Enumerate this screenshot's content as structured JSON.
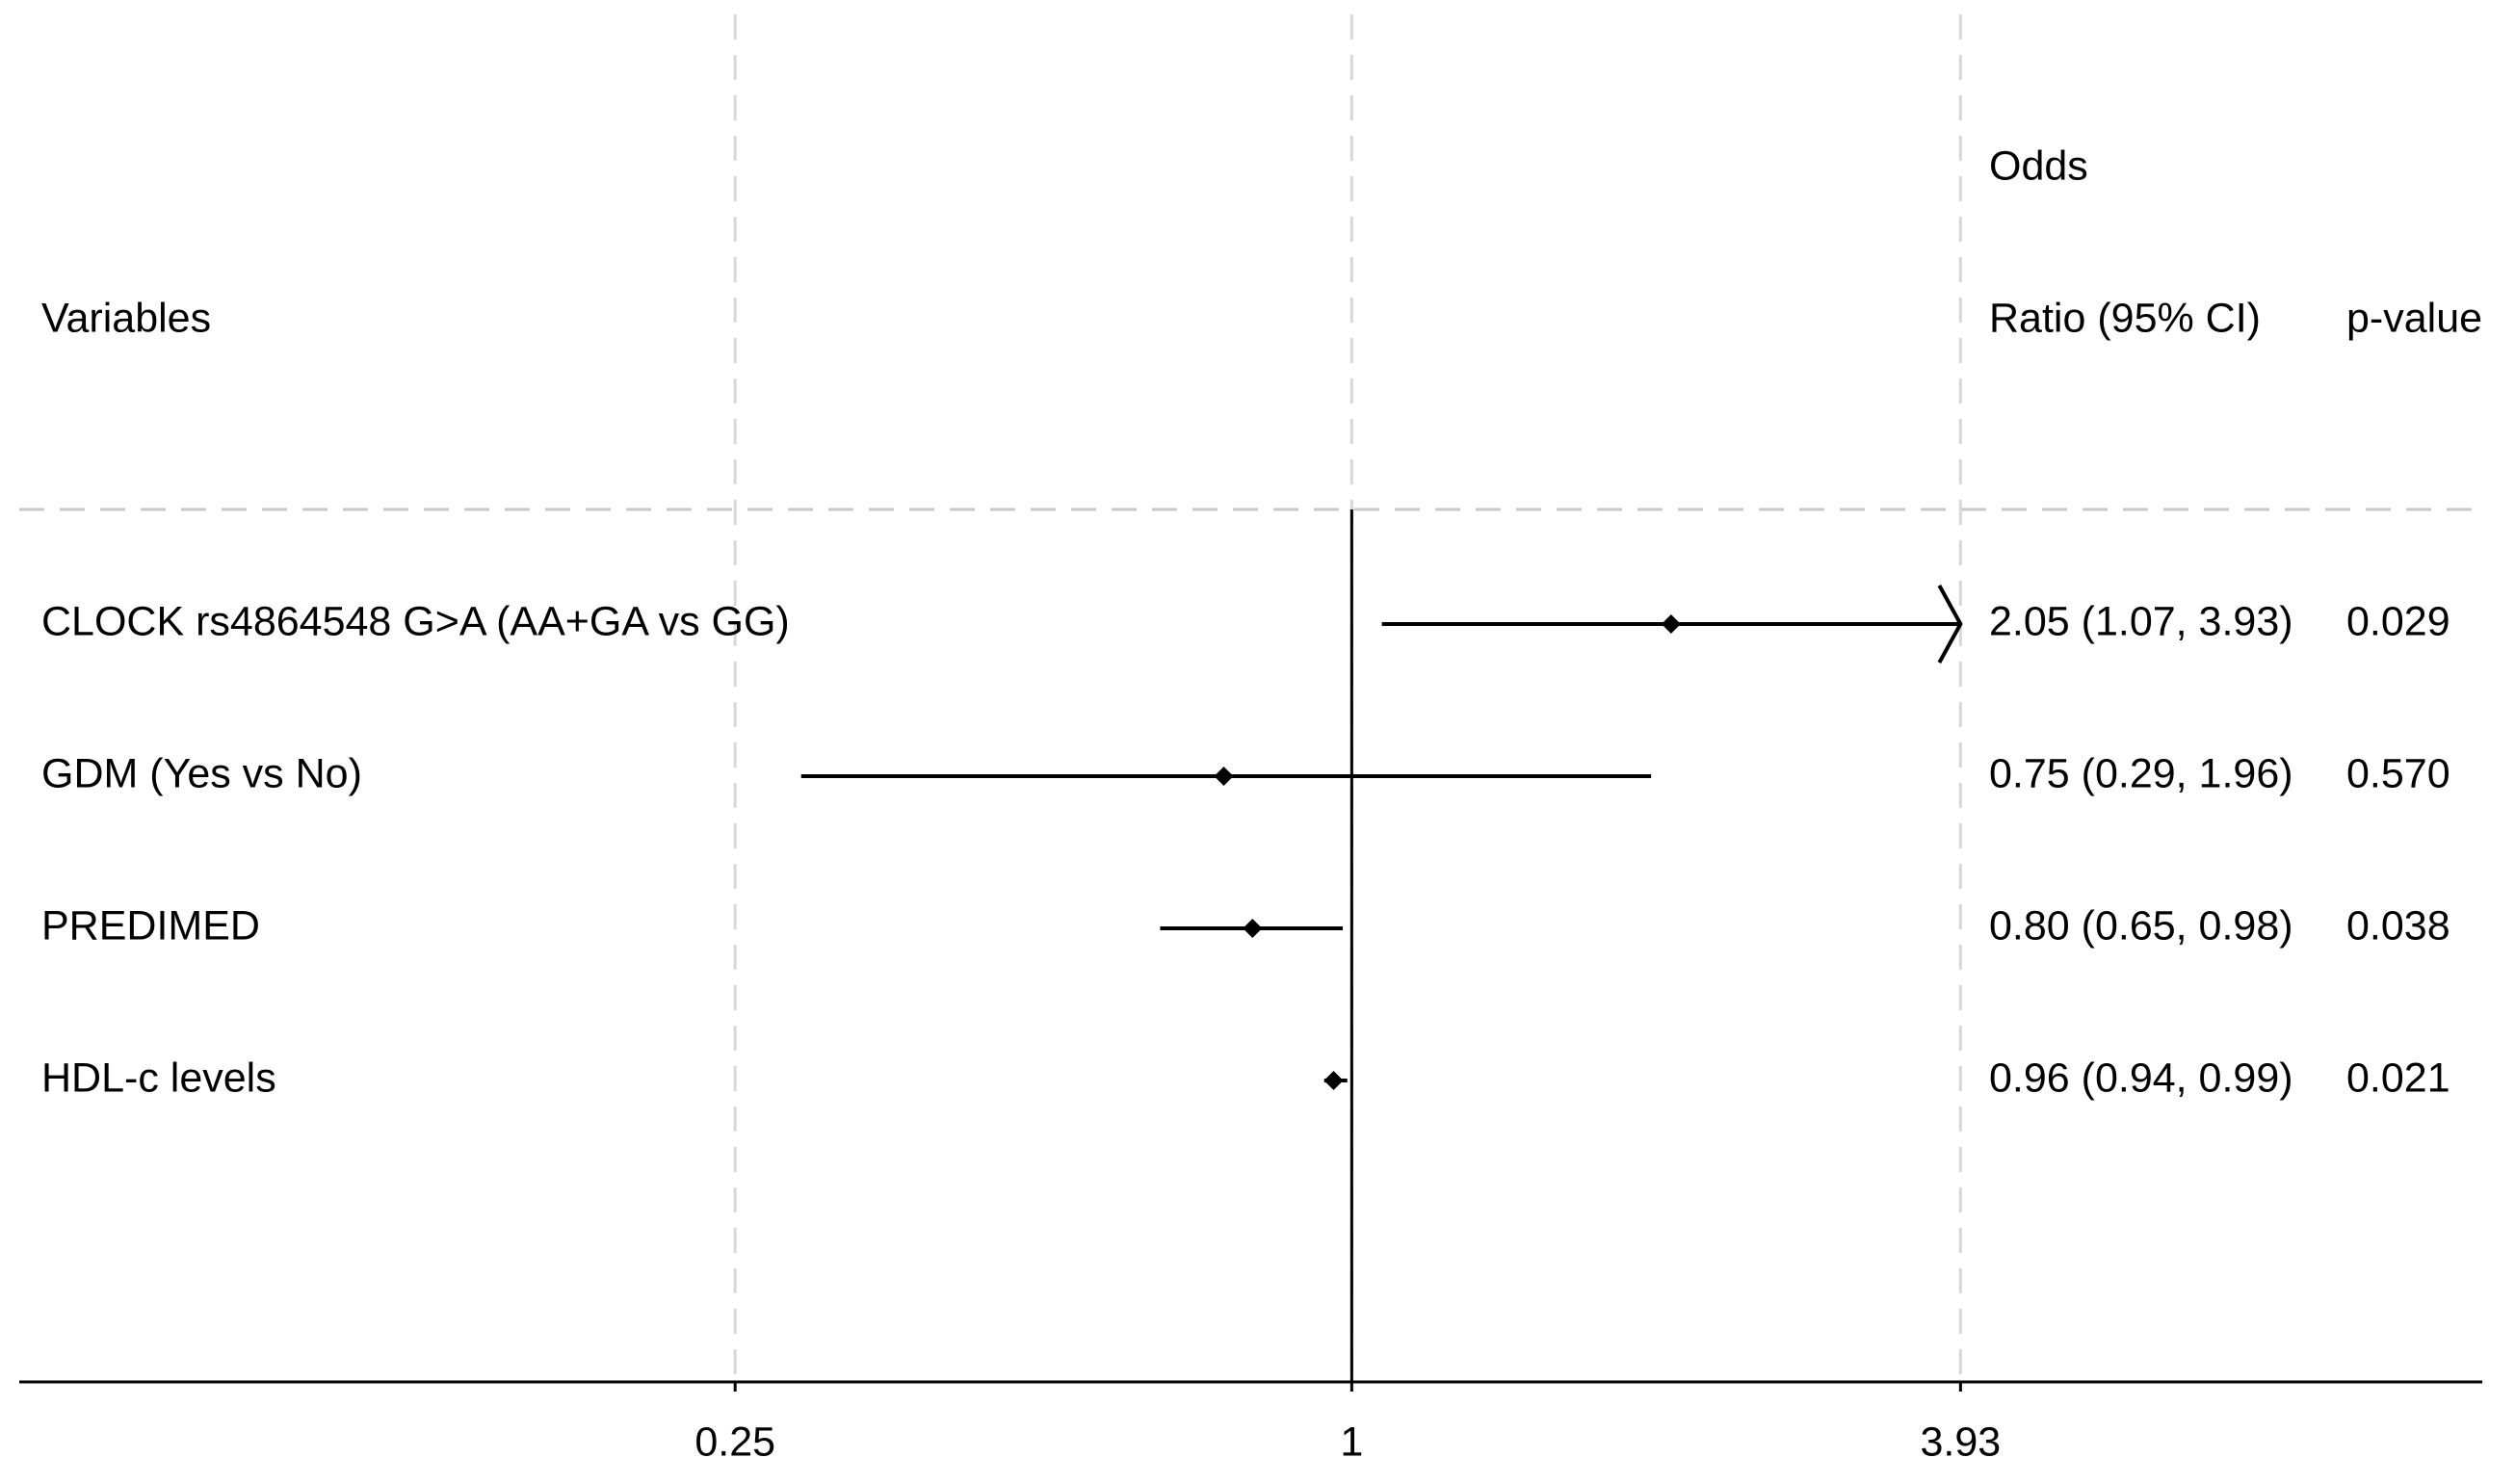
{
  "chart_data": {
    "type": "forest",
    "headers": {
      "variables": "Variables",
      "estimate_top": "Odds",
      "estimate": "Ratio (95% CI)",
      "p": "p-value"
    },
    "categories": [
      "CLOCK rs4864548 G>A (AA+GA vs GG)",
      "GDM (Yes vs No)",
      "PREDIMED",
      "HDL-c levels"
    ],
    "values": [
      2.05,
      0.75,
      0.8,
      0.96
    ],
    "ci_low": [
      1.07,
      0.29,
      0.65,
      0.94
    ],
    "ci_high": [
      3.93,
      1.96,
      0.98,
      0.99
    ],
    "value_labels": [
      "2.05 (1.07, 3.93)",
      "0.75 (0.29, 1.96)",
      "0.80 (0.65, 0.98)",
      "0.96 (0.94, 0.99)"
    ],
    "p_values": [
      "0.029",
      "0.570",
      "0.038",
      "0.021"
    ],
    "xlim": [
      0.05,
      12.7
    ],
    "xticks": [
      0.25,
      1,
      3.93
    ],
    "reference": 1,
    "log_scale": true,
    "grid": true,
    "color": "#000000"
  }
}
